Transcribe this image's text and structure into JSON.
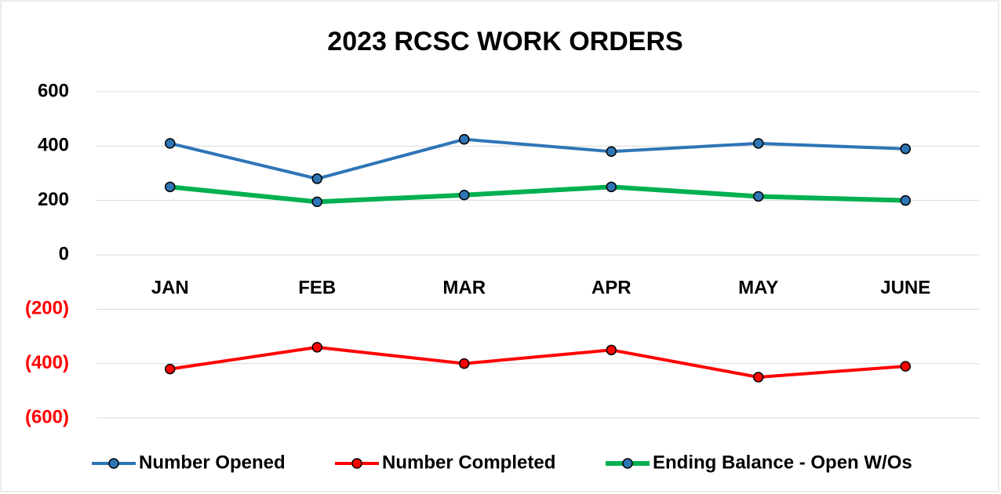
{
  "chart_data": {
    "type": "line",
    "title": "2023 RCSC WORK ORDERS",
    "categories": [
      "JAN",
      "FEB",
      "MAR",
      "APR",
      "MAY",
      "JUNE"
    ],
    "series": [
      {
        "name": "Number Opened",
        "color": "#2e75b6",
        "marker_color": "#2e75b6",
        "values": [
          410,
          280,
          425,
          380,
          410,
          390
        ]
      },
      {
        "name": "Number Completed",
        "color": "#ff0000",
        "marker_color": "#ff0000",
        "values": [
          -420,
          -340,
          -400,
          -350,
          -450,
          -410
        ]
      },
      {
        "name": "Ending Balance - Open W/Os",
        "color": "#00b050",
        "marker_color": "#2e75b6",
        "values": [
          250,
          195,
          220,
          250,
          215,
          200
        ]
      }
    ],
    "ylim": [
      -600,
      600
    ],
    "yticks": [
      {
        "value": -600,
        "label": "(600)"
      },
      {
        "value": -400,
        "label": "(400)"
      },
      {
        "value": -200,
        "label": "(200)"
      },
      0,
      200,
      400,
      600
    ],
    "grid": true,
    "legend": "bottom"
  }
}
